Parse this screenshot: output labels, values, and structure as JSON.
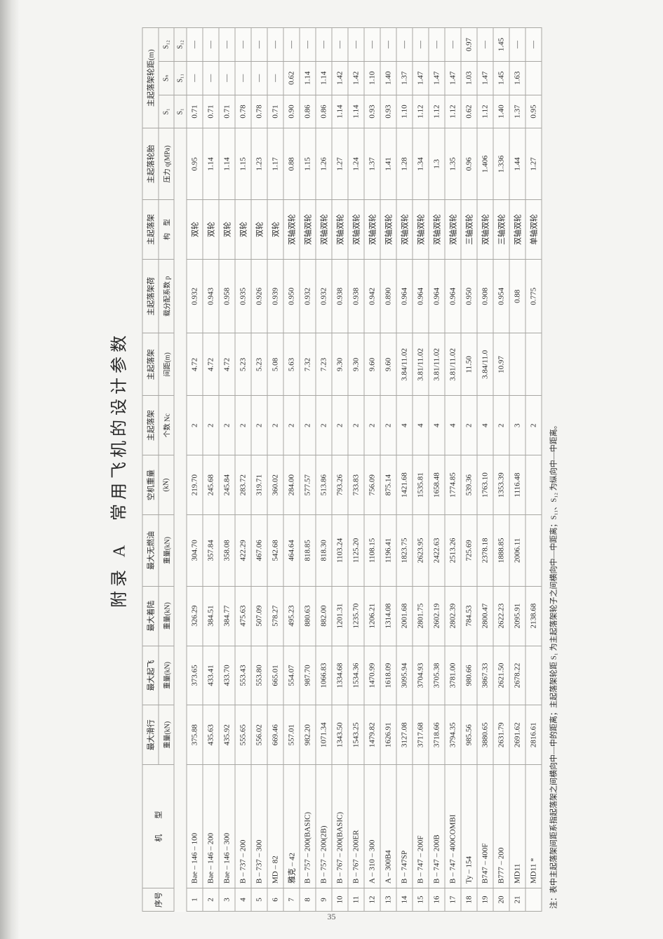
{
  "title": "附录 A　常用飞机的设计参数",
  "page_number": "35",
  "footnote": "注：表中主起落架间距系指起落架之间横向中—中的距离；主起落架轮距 S₁ 为主起落架轮子之间横向中—中距离；S₁₁、S₁₂ 为纵向中—中距离。",
  "headers": {
    "c1": "序号",
    "c2": "机　　型",
    "c3a": "最大滑行",
    "c3b": "重量(kN)",
    "c4a": "最大起飞",
    "c4b": "重量(kN)",
    "c5a": "最大着陆",
    "c5b": "重量(kN)",
    "c6a": "最大无燃油",
    "c6b": "重量(kN)",
    "c7a": "空机重量",
    "c7b": "(kN)",
    "c8a": "主起落架",
    "c8b": "个数 Nc",
    "c9a": "主起落架",
    "c9b": "间距(m)",
    "c10a": "主起落架荷",
    "c10b": "载分配系数 p",
    "c11a": "主起落架",
    "c11b": "构　型",
    "c12a": "主起落轮胎",
    "c12b": "压力 q(MPa)",
    "g_top": "主起落架轮距(m)",
    "g_st": "S₁",
    "g_sn": "Sₙ",
    "g_s12": "S₁₂",
    "g_stb": "S₁",
    "g_snb": "S₁₁",
    "g_s12b": "S₁₂"
  },
  "rows": [
    {
      "n": "1",
      "m": "Bae – 146 – 100",
      "w1": "375.88",
      "w2": "373.65",
      "w3": "326.29",
      "w4": "304.70",
      "w5": "219.70",
      "nc": "2",
      "sp": "4.72",
      "p": "0.932",
      "cfg": "双轮",
      "q": "0.95",
      "s1": "0.71",
      "sn": "—",
      "s12": "—"
    },
    {
      "n": "2",
      "m": "Bae – 146 – 200",
      "w1": "435.63",
      "w2": "433.41",
      "w3": "384.51",
      "w4": "357.84",
      "w5": "245.68",
      "nc": "2",
      "sp": "4.72",
      "p": "0.943",
      "cfg": "双轮",
      "q": "1.14",
      "s1": "0.71",
      "sn": "—",
      "s12": "—"
    },
    {
      "n": "3",
      "m": "Bae – 146 – 300",
      "w1": "435.92",
      "w2": "433.70",
      "w3": "384.77",
      "w4": "358.08",
      "w5": "245.84",
      "nc": "2",
      "sp": "4.72",
      "p": "0.958",
      "cfg": "双轮",
      "q": "1.14",
      "s1": "0.71",
      "sn": "—",
      "s12": "—"
    },
    {
      "n": "4",
      "m": "B – 737 – 200",
      "w1": "555.65",
      "w2": "553.43",
      "w3": "475.63",
      "w4": "422.29",
      "w5": "283.72",
      "nc": "2",
      "sp": "5.23",
      "p": "0.935",
      "cfg": "双轮",
      "q": "1.15",
      "s1": "0.78",
      "sn": "—",
      "s12": "—"
    },
    {
      "n": "5",
      "m": "B – 737 – 300",
      "w1": "556.02",
      "w2": "553.80",
      "w3": "507.09",
      "w4": "467.06",
      "w5": "319.71",
      "nc": "2",
      "sp": "5.23",
      "p": "0.926",
      "cfg": "双轮",
      "q": "1.23",
      "s1": "0.78",
      "sn": "—",
      "s12": "—"
    },
    {
      "n": "6",
      "m": "MD – 82",
      "w1": "669.46",
      "w2": "665.01",
      "w3": "578.27",
      "w4": "542.68",
      "w5": "360.02",
      "nc": "2",
      "sp": "5.08",
      "p": "0.939",
      "cfg": "双轮",
      "q": "1.17",
      "s1": "0.71",
      "sn": "—",
      "s12": "—"
    },
    {
      "n": "7",
      "m": "雅克 – 42",
      "w1": "557.01",
      "w2": "554.07",
      "w3": "495.23",
      "w4": "464.64",
      "w5": "284.00",
      "nc": "2",
      "sp": "5.63",
      "p": "0.950",
      "cfg": "双轴双轮",
      "q": "0.88",
      "s1": "0.90",
      "sn": "0.62",
      "s12": "—"
    },
    {
      "n": "8",
      "m": "B – 757 – 200(BASIC)",
      "w1": "982.20",
      "w2": "987.70",
      "w3": "880.63",
      "w4": "818.85",
      "w5": "577.57",
      "nc": "2",
      "sp": "7.32",
      "p": "0.932",
      "cfg": "双轴双轮",
      "q": "1.15",
      "s1": "0.86",
      "sn": "1.14",
      "s12": "—"
    },
    {
      "n": "9",
      "m": "B – 757 – 200(2B)",
      "w1": "1071.34",
      "w2": "1066.83",
      "w3": "882.00",
      "w4": "818.30",
      "w5": "513.86",
      "nc": "2",
      "sp": "7.23",
      "p": "0.932",
      "cfg": "双轴双轮",
      "q": "1.26",
      "s1": "0.86",
      "sn": "1.14",
      "s12": "—"
    },
    {
      "n": "10",
      "m": "B – 767 – 200(BASIC)",
      "w1": "1343.50",
      "w2": "1334.68",
      "w3": "1201.31",
      "w4": "1103.24",
      "w5": "793.26",
      "nc": "2",
      "sp": "9.30",
      "p": "0.938",
      "cfg": "双轴双轮",
      "q": "1.27",
      "s1": "1.14",
      "sn": "1.42",
      "s12": "—"
    },
    {
      "n": "11",
      "m": "B – 767 – 200ER",
      "w1": "1543.25",
      "w2": "1534.36",
      "w3": "1235.70",
      "w4": "1125.20",
      "w5": "733.83",
      "nc": "2",
      "sp": "9.30",
      "p": "0.938",
      "cfg": "双轴双轮",
      "q": "1.24",
      "s1": "1.14",
      "sn": "1.42",
      "s12": "—"
    },
    {
      "n": "12",
      "m": "A – 310 – 300",
      "w1": "1479.82",
      "w2": "1470.99",
      "w3": "1206.21",
      "w4": "1108.15",
      "w5": "756.09",
      "nc": "2",
      "sp": "9.60",
      "p": "0.942",
      "cfg": "双轴双轮",
      "q": "1.37",
      "s1": "0.93",
      "sn": "1.10",
      "s12": "—"
    },
    {
      "n": "13",
      "m": "A – 300B4",
      "w1": "1626.91",
      "w2": "1618.09",
      "w3": "1314.08",
      "w4": "1196.41",
      "w5": "875.14",
      "nc": "2",
      "sp": "9.60",
      "p": "0.890",
      "cfg": "双轴双轮",
      "q": "1.41",
      "s1": "0.93",
      "sn": "1.40",
      "s12": "—"
    },
    {
      "n": "14",
      "m": "B – 747SP",
      "w1": "3127.08",
      "w2": "3095.94",
      "w3": "2001.68",
      "w4": "1823.75",
      "w5": "1421.68",
      "nc": "4",
      "sp": "3.84/11.02",
      "p": "0.964",
      "cfg": "双轴双轮",
      "q": "1.28",
      "s1": "1.10",
      "sn": "1.37",
      "s12": "—"
    },
    {
      "n": "15",
      "m": "B – 747 – 200F",
      "w1": "3717.68",
      "w2": "3704.93",
      "w3": "2801.75",
      "w4": "2623.95",
      "w5": "1535.81",
      "nc": "4",
      "sp": "3.81/11.02",
      "p": "0.964",
      "cfg": "双轴双轮",
      "q": "1.34",
      "s1": "1.12",
      "sn": "1.47",
      "s12": "—"
    },
    {
      "n": "16",
      "m": "B – 747 – 200B",
      "w1": "3718.66",
      "w2": "3705.38",
      "w3": "2602.19",
      "w4": "2422.63",
      "w5": "1658.48",
      "nc": "4",
      "sp": "3.81/11.02",
      "p": "0.964",
      "cfg": "双轴双轮",
      "q": "1.3",
      "s1": "1.12",
      "sn": "1.47",
      "s12": "—"
    },
    {
      "n": "17",
      "m": "B – 747 – 400COMBI",
      "w1": "3794.35",
      "w2": "3781.00",
      "w3": "2802.39",
      "w4": "2513.26",
      "w5": "1774.85",
      "nc": "4",
      "sp": "3.81/11.02",
      "p": "0.964",
      "cfg": "双轴双轮",
      "q": "1.35",
      "s1": "1.12",
      "sn": "1.47",
      "s12": "—"
    },
    {
      "n": "18",
      "m": "Ty – 154",
      "w1": "985.56",
      "w2": "980.66",
      "w3": "784.53",
      "w4": "725.69",
      "w5": "539.36",
      "nc": "2",
      "sp": "11.50",
      "p": "0.950",
      "cfg": "三轴双轮",
      "q": "0.96",
      "s1": "0.62",
      "sn": "1.03",
      "s12": "0.97"
    },
    {
      "n": "19",
      "m": "B747 – 400F",
      "w1": "3880.65",
      "w2": "3867.33",
      "w3": "2800.47",
      "w4": "2378.18",
      "w5": "1763.10",
      "nc": "4",
      "sp": "3.84/11.0",
      "p": "0.908",
      "cfg": "双轴双轮",
      "q": "1.406",
      "s1": "1.12",
      "sn": "1.47",
      "s12": "—"
    },
    {
      "n": "20",
      "m": "B777 – 200",
      "w1": "2631.79",
      "w2": "2621.50",
      "w3": "2622.23",
      "w4": "1888.85",
      "w5": "1353.39",
      "nc": "2",
      "sp": "10.97",
      "p": "0.954",
      "cfg": "三轴双轮",
      "q": "1.336",
      "s1": "1.40",
      "sn": "1.45",
      "s12": "1.45"
    },
    {
      "n": "21",
      "m": "MD11",
      "w1": "2691.62",
      "w2": "2678.22",
      "w3": "2095.91",
      "w4": "2006.11",
      "w5": "1116.48",
      "nc": "3",
      "sp": "",
      "p": "0.88",
      "cfg": "双轴双轮",
      "q": "1.44",
      "s1": "1.37",
      "sn": "1.63",
      "s12": "—"
    },
    {
      "n": "",
      "m": "MD11 *",
      "w1": "2816.61",
      "w2": "",
      "w3": "2138.68",
      "w4": "",
      "w5": "",
      "nc": "2",
      "sp": "",
      "p": "0.775",
      "cfg": "单轴双轮",
      "q": "1.27",
      "s1": "0.95",
      "sn": "",
      "s12": "—"
    }
  ]
}
